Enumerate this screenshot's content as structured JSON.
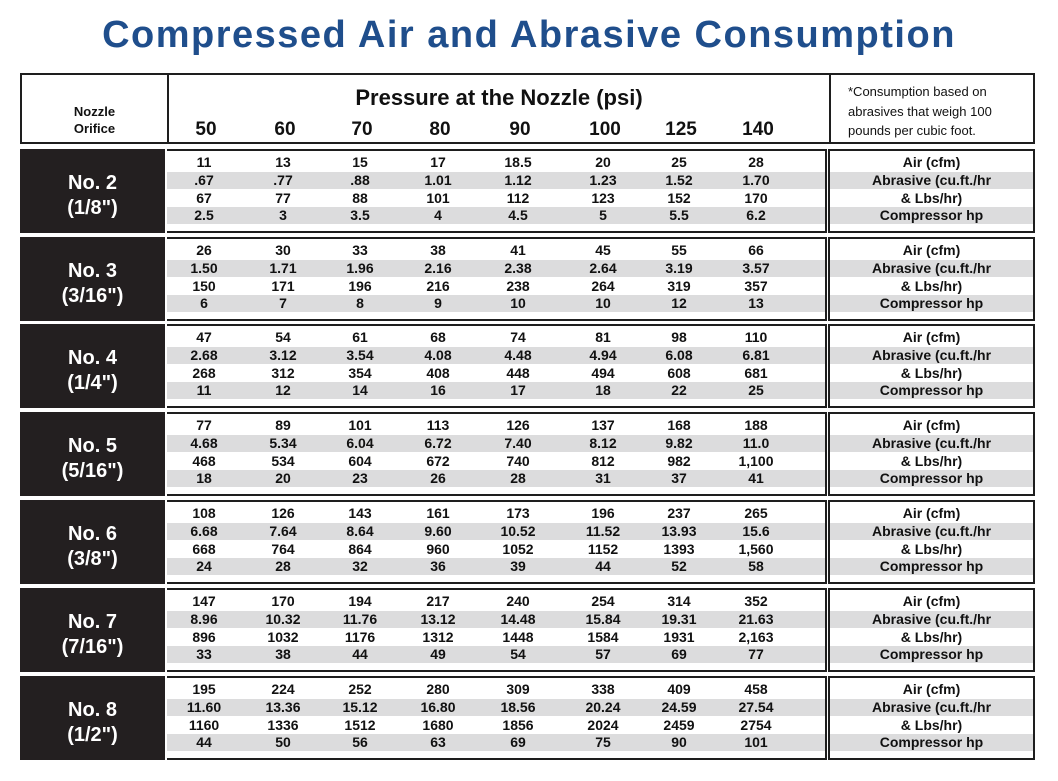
{
  "title": "Compressed Air and Abrasive Consumption",
  "header": {
    "nozzle_line1": "Nozzle",
    "nozzle_line2": "Orifice",
    "pressure_title": "Pressure at the Nozzle (psi)",
    "pressures": [
      "50",
      "60",
      "70",
      "80",
      "90",
      "100",
      "125",
      "140"
    ],
    "note_line1": "*Consumption based on",
    "note_line2": "abrasives that weigh 100",
    "note_line3": "pounds per cubic foot."
  },
  "row_labels": [
    "Air (cfm)",
    "Abrasive (cu.ft./hr",
    "& Lbs/hr)",
    "Compressor hp"
  ],
  "nozzles": [
    {
      "name": "No. 2",
      "size": "(1/8\")",
      "rows": [
        [
          "11",
          "13",
          "15",
          "17",
          "18.5",
          "20",
          "25",
          "28"
        ],
        [
          ".67",
          ".77",
          ".88",
          "1.01",
          "1.12",
          "1.23",
          "1.52",
          "1.70"
        ],
        [
          "67",
          "77",
          "88",
          "101",
          "112",
          "123",
          "152",
          "170"
        ],
        [
          "2.5",
          "3",
          "3.5",
          "4",
          "4.5",
          "5",
          "5.5",
          "6.2"
        ]
      ]
    },
    {
      "name": "No. 3",
      "size": "(3/16\")",
      "rows": [
        [
          "26",
          "30",
          "33",
          "38",
          "41",
          "45",
          "55",
          "66"
        ],
        [
          "1.50",
          "1.71",
          "1.96",
          "2.16",
          "2.38",
          "2.64",
          "3.19",
          "3.57"
        ],
        [
          "150",
          "171",
          "196",
          "216",
          "238",
          "264",
          "319",
          "357"
        ],
        [
          "6",
          "7",
          "8",
          "9",
          "10",
          "10",
          "12",
          "13"
        ]
      ]
    },
    {
      "name": "No. 4",
      "size": "(1/4\")",
      "rows": [
        [
          "47",
          "54",
          "61",
          "68",
          "74",
          "81",
          "98",
          "110"
        ],
        [
          "2.68",
          "3.12",
          "3.54",
          "4.08",
          "4.48",
          "4.94",
          "6.08",
          "6.81"
        ],
        [
          "268",
          "312",
          "354",
          "408",
          "448",
          "494",
          "608",
          "681"
        ],
        [
          "11",
          "12",
          "14",
          "16",
          "17",
          "18",
          "22",
          "25"
        ]
      ]
    },
    {
      "name": "No. 5",
      "size": "(5/16\")",
      "rows": [
        [
          "77",
          "89",
          "101",
          "113",
          "126",
          "137",
          "168",
          "188"
        ],
        [
          "4.68",
          "5.34",
          "6.04",
          "6.72",
          "7.40",
          "8.12",
          "9.82",
          "11.0"
        ],
        [
          "468",
          "534",
          "604",
          "672",
          "740",
          "812",
          "982",
          "1,100"
        ],
        [
          "18",
          "20",
          "23",
          "26",
          "28",
          "31",
          "37",
          "41"
        ]
      ]
    },
    {
      "name": "No. 6",
      "size": "(3/8\")",
      "rows": [
        [
          "108",
          "126",
          "143",
          "161",
          "173",
          "196",
          "237",
          "265"
        ],
        [
          "6.68",
          "7.64",
          "8.64",
          "9.60",
          "10.52",
          "11.52",
          "13.93",
          "15.6"
        ],
        [
          "668",
          "764",
          "864",
          "960",
          "1052",
          "1152",
          "1393",
          "1,560"
        ],
        [
          "24",
          "28",
          "32",
          "36",
          "39",
          "44",
          "52",
          "58"
        ]
      ]
    },
    {
      "name": "No. 7",
      "size": "(7/16\")",
      "rows": [
        [
          "147",
          "170",
          "194",
          "217",
          "240",
          "254",
          "314",
          "352"
        ],
        [
          "8.96",
          "10.32",
          "11.76",
          "13.12",
          "14.48",
          "15.84",
          "19.31",
          "21.63"
        ],
        [
          "896",
          "1032",
          "1176",
          "1312",
          "1448",
          "1584",
          "1931",
          "2,163"
        ],
        [
          "33",
          "38",
          "44",
          "49",
          "54",
          "57",
          "69",
          "77"
        ]
      ]
    },
    {
      "name": "No. 8",
      "size": "(1/2\")",
      "rows": [
        [
          "195",
          "224",
          "252",
          "280",
          "309",
          "338",
          "409",
          "458"
        ],
        [
          "11.60",
          "13.36",
          "15.12",
          "16.80",
          "18.56",
          "20.24",
          "24.59",
          "27.54"
        ],
        [
          "1160",
          "1336",
          "1512",
          "1680",
          "1856",
          "2024",
          "2459",
          "2754"
        ],
        [
          "44",
          "50",
          "56",
          "63",
          "69",
          "75",
          "90",
          "101"
        ]
      ]
    }
  ]
}
